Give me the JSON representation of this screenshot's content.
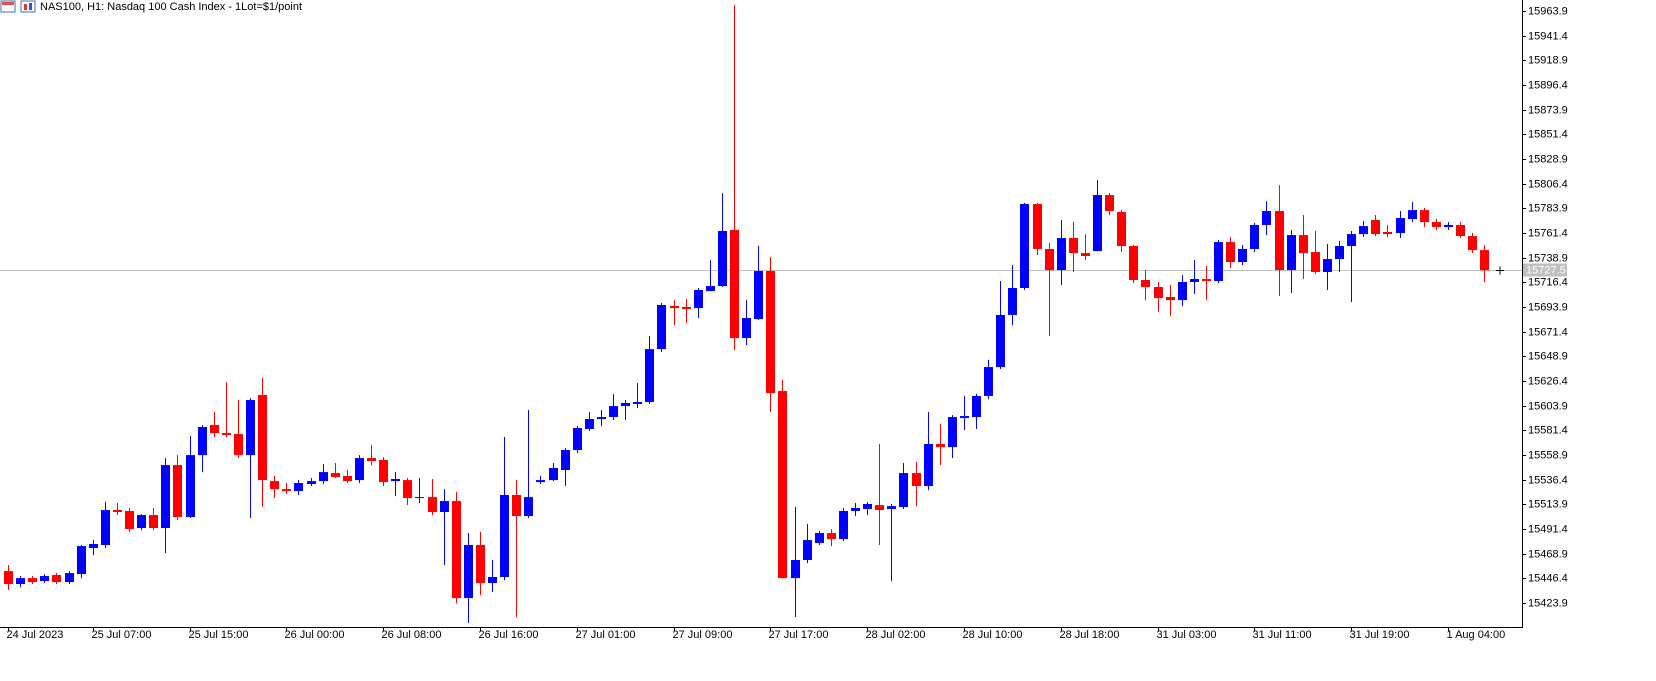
{
  "chart_data": {
    "type": "candlestick",
    "title": "NAS100, H1:  Nasdaq 100 Cash Index - 1Lot=$1/point",
    "up_color": "#0000ff",
    "down_color": "#ff0000",
    "ylim": [
      15402.0,
      15973.9
    ],
    "yticks": [
      15423.9,
      15446.4,
      15468.9,
      15491.4,
      15513.9,
      15536.4,
      15558.9,
      15581.4,
      15603.9,
      15626.4,
      15648.9,
      15671.4,
      15693.9,
      15716.4,
      15738.9,
      15761.4,
      15783.9,
      15806.4,
      15828.9,
      15851.4,
      15873.9,
      15896.4,
      15918.9,
      15941.4,
      15963.9
    ],
    "current_price": 15727.5,
    "categories": [
      "24 Jul 2023",
      null,
      null,
      null,
      null,
      null,
      null,
      "25 Jul 07:00",
      null,
      null,
      null,
      null,
      null,
      null,
      null,
      "25 Jul 15:00",
      null,
      null,
      null,
      null,
      null,
      null,
      null,
      "26 Jul 00:00",
      null,
      null,
      null,
      null,
      null,
      null,
      null,
      "26 Jul 08:00",
      null,
      null,
      null,
      null,
      null,
      null,
      null,
      "26 Jul 16:00",
      null,
      null,
      null,
      null,
      null,
      null,
      null,
      "27 Jul 01:00",
      null,
      null,
      null,
      null,
      null,
      null,
      null,
      "27 Jul 09:00",
      null,
      null,
      null,
      null,
      null,
      null,
      null,
      "27 Jul 17:00",
      null,
      null,
      null,
      null,
      null,
      null,
      null,
      "28 Jul 02:00",
      null,
      null,
      null,
      null,
      null,
      null,
      null,
      "28 Jul 10:00",
      null,
      null,
      null,
      null,
      null,
      null,
      null,
      "28 Jul 18:00",
      null,
      null,
      null,
      null,
      null,
      null,
      null,
      "31 Jul 03:00",
      null,
      null,
      null,
      null,
      null,
      null,
      null,
      "31 Jul 11:00",
      null,
      null,
      null,
      null,
      null,
      null,
      null,
      "31 Jul 19:00",
      null,
      null,
      null,
      null,
      null,
      null,
      null,
      "1 Aug 04:00",
      null,
      null,
      null
    ],
    "open": [
      15453.0,
      15441.2,
      15446.6,
      15443.9,
      15449.4,
      15443.0,
      15450.3,
      15474.0,
      15476.8,
      15508.7,
      15507.8,
      15492.3,
      15504.1,
      15492.3,
      15549.7,
      15502.3,
      15558.8,
      15586.2,
      15578.9,
      15578.0,
      15558.8,
      15613.6,
      15535.1,
      15527.8,
      15526.0,
      15532.4,
      15535.1,
      15542.4,
      15539.7,
      15536.0,
      15556.1,
      15554.3,
      15535.1,
      15536.0,
      15519.6,
      15520.5,
      15506.9,
      15516.9,
      15428.4,
      15476.8,
      15442.1,
      15447.6,
      15522.4,
      15503.2,
      15534.2,
      15536.0,
      15545.2,
      15563.4,
      15582.6,
      15591.7,
      15593.5,
      15603.5,
      15605.4,
      15607.2,
      15655.5,
      15694.8,
      15693.9,
      15692.9,
      15708.4,
      15713.0,
      15764.1,
      15665.6,
      15682.9,
      15726.7,
      15617.2,
      15446.6,
      15463.1,
      15478.6,
      15487.7,
      15482.2,
      15507.8,
      15509.6,
      15513.2,
      15509.6,
      15511.4,
      15542.4,
      15530.6,
      15568.9,
      15566.1,
      15592.6,
      15593.5,
      15612.7,
      15639.1,
      15686.6,
      15711.2,
      15787.8,
      15746.8,
      15727.6,
      15756.8,
      15743.1,
      15744.9,
      15796.0,
      15780.5,
      15749.5,
      15718.5,
      15712.1,
      15703.0,
      15700.2,
      15716.7,
      15719.4,
      15717.6,
      15753.1,
      15734.9,
      15746.8,
      15768.7,
      15781.4,
      15727.6,
      15759.5,
      15744.0,
      15725.8,
      15737.6,
      15749.5,
      15760.4,
      15773.2,
      15762.3,
      15761.4,
      15774.1,
      15782.3,
      15771.4,
      15766.8,
      15768.7,
      15758.6,
      15745.8
    ],
    "high": [
      15458.5,
      15448.5,
      15448.5,
      15450.3,
      15451.2,
      15453.0,
      15476.8,
      15481.3,
      15516.0,
      15515.1,
      15510.5,
      15505.0,
      15510.5,
      15556.1,
      15558.8,
      15576.2,
      15586.2,
      15598.1,
      15625.4,
      15609.0,
      15610.8,
      15629.1,
      15539.7,
      15533.3,
      15536.0,
      15537.9,
      15550.6,
      15551.6,
      15545.2,
      15558.8,
      15568.0,
      15557.0,
      15543.3,
      15537.9,
      15537.9,
      15537.0,
      15527.8,
      15525.1,
      15487.7,
      15488.6,
      15463.1,
      15575.3,
      15536.0,
      15599.9,
      15539.7,
      15551.6,
      15565.2,
      15585.3,
      15598.1,
      15599.9,
      15614.5,
      15609.0,
      15624.5,
      15667.4,
      15697.5,
      15700.2,
      15701.2,
      15711.2,
      15736.7,
      15797.8,
      15969.3,
      15700.2,
      15749.5,
      15739.5,
      15627.3,
      15511.4,
      15495.9,
      15489.5,
      15491.3,
      15510.5,
      15515.1,
      15516.0,
      15568.9,
      15514.2,
      15551.6,
      15552.5,
      15598.1,
      15587.1,
      15595.3,
      15612.7,
      15614.5,
      15645.5,
      15717.6,
      15732.2,
      15788.7,
      15788.7,
      15752.2,
      15773.2,
      15771.4,
      15760.4,
      15809.7,
      15797.8,
      15782.3,
      15750.4,
      15727.6,
      15716.7,
      15713.9,
      15723.0,
      15736.7,
      15731.3,
      15755.0,
      15757.7,
      15750.4,
      15770.5,
      15790.5,
      15805.1,
      15764.1,
      15777.8,
      15763.2,
      15751.3,
      15754.1,
      15763.2,
      15772.3,
      15777.8,
      15768.7,
      15781.4,
      15789.6,
      15784.2,
      15774.1,
      15771.4,
      15771.4,
      15761.4,
      15750.4
    ],
    "low": [
      15435.7,
      15438.4,
      15441.2,
      15442.1,
      15441.2,
      15441.2,
      15446.6,
      15467.6,
      15474.0,
      15504.1,
      15488.6,
      15490.4,
      15490.4,
      15469.5,
      15499.6,
      15501.4,
      15543.3,
      15575.3,
      15575.3,
      15556.1,
      15501.4,
      15511.4,
      15519.6,
      15523.3,
      15522.4,
      15530.6,
      15532.4,
      15537.9,
      15533.3,
      15533.3,
      15549.7,
      15530.6,
      15521.4,
      15513.2,
      15515.1,
      15504.1,
      15458.5,
      15423.8,
      15405.6,
      15431.1,
      15433.9,
      15444.8,
      15411.1,
      15501.4,
      15532.4,
      15535.1,
      15530.6,
      15560.7,
      15580.7,
      15585.3,
      15590.8,
      15590.8,
      15601.7,
      15605.4,
      15652.8,
      15677.4,
      15679.3,
      15683.8,
      15708.4,
      15712.1,
      15654.6,
      15659.2,
      15682.0,
      15598.1,
      15446.6,
      15411.1,
      15460.3,
      15476.8,
      15475.8,
      15480.4,
      15503.2,
      15504.1,
      15476.8,
      15443.9,
      15509.6,
      15512.3,
      15526.9,
      15549.7,
      15556.1,
      15581.7,
      15582.6,
      15609.9,
      15637.3,
      15677.4,
      15709.4,
      15741.3,
      15667.4,
      15713.9,
      15725.8,
      15736.7,
      15744.9,
      15777.8,
      15744.0,
      15715.7,
      15700.2,
      15689.3,
      15685.6,
      15694.8,
      15705.7,
      15700.2,
      15715.7,
      15729.4,
      15732.2,
      15744.0,
      15759.5,
      15703.9,
      15706.6,
      15719.4,
      15724.0,
      15709.4,
      15725.8,
      15698.4,
      15757.7,
      15758.6,
      15757.7,
      15756.8,
      15771.4,
      15766.8,
      15764.1,
      15764.1,
      15756.8,
      15743.1,
      15716.7
    ],
    "close": [
      15441.2,
      15446.6,
      15443.0,
      15448.5,
      15443.0,
      15451.2,
      15475.8,
      15477.7,
      15508.7,
      15506.9,
      15491.3,
      15504.1,
      15492.3,
      15549.7,
      15502.3,
      15558.8,
      15584.4,
      15578.9,
      15577.1,
      15558.8,
      15609.0,
      15536.0,
      15527.8,
      15526.0,
      15533.3,
      15535.1,
      15543.3,
      15538.8,
      15535.1,
      15556.1,
      15553.4,
      15534.2,
      15537.0,
      15519.6,
      15520.5,
      15506.9,
      15516.9,
      15428.4,
      15476.8,
      15442.1,
      15447.6,
      15522.4,
      15503.2,
      15520.5,
      15536.0,
      15547.0,
      15563.4,
      15583.5,
      15591.7,
      15593.5,
      15603.5,
      15606.3,
      15607.2,
      15655.5,
      15695.7,
      15692.9,
      15692.0,
      15709.4,
      15713.0,
      15763.2,
      15665.6,
      15683.8,
      15726.7,
      15615.4,
      15446.6,
      15463.1,
      15481.3,
      15487.7,
      15482.2,
      15507.8,
      15510.5,
      15514.2,
      15508.7,
      15512.3,
      15542.4,
      15530.6,
      15568.9,
      15566.1,
      15593.5,
      15594.4,
      15612.7,
      15639.1,
      15686.6,
      15711.2,
      15787.8,
      15746.8,
      15727.6,
      15756.8,
      15743.1,
      15740.4,
      15796.0,
      15781.4,
      15749.5,
      15718.5,
      15712.1,
      15702.1,
      15700.2,
      15716.7,
      15719.4,
      15717.6,
      15753.1,
      15734.9,
      15746.8,
      15768.7,
      15781.4,
      15727.6,
      15759.5,
      15743.1,
      15725.8,
      15737.6,
      15749.5,
      15760.4,
      15767.7,
      15760.4,
      15760.4,
      15775.0,
      15782.3,
      15771.4,
      15766.8,
      15768.7,
      15758.6,
      15745.8,
      15727.5
    ]
  }
}
